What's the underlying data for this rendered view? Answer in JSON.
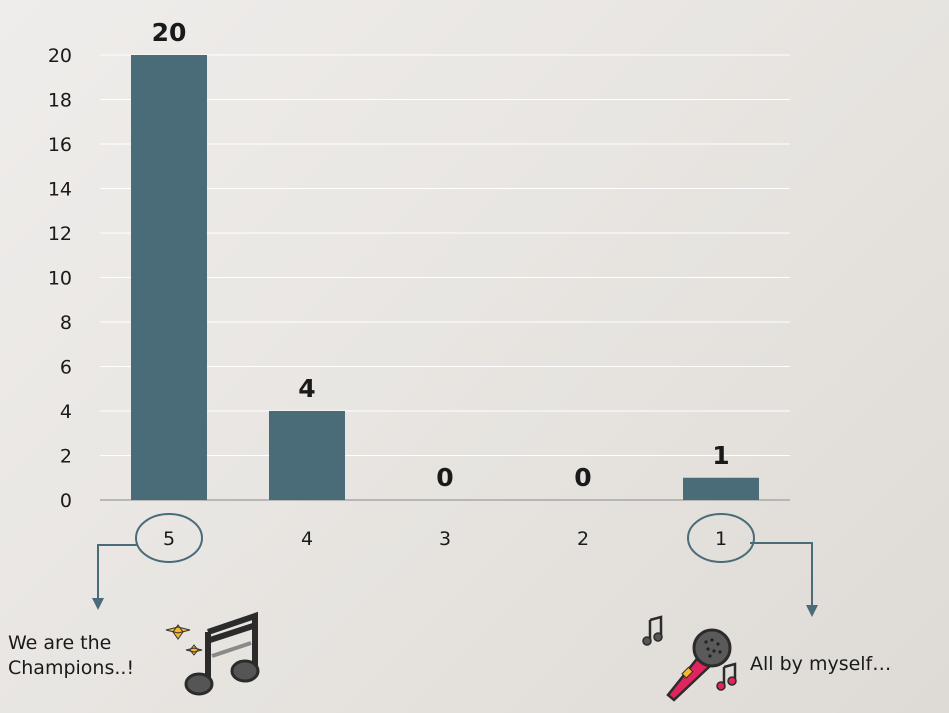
{
  "chart_data": {
    "type": "bar",
    "categories": [
      "5",
      "4",
      "3",
      "2",
      "1"
    ],
    "values": [
      20,
      4,
      0,
      0,
      1
    ],
    "data_labels": [
      "20",
      "4",
      "0",
      "0",
      "1"
    ],
    "title": "",
    "xlabel": "",
    "ylabel": "",
    "ylim": [
      0,
      20
    ],
    "yticks": [
      "0",
      "2",
      "4",
      "6",
      "8",
      "10",
      "12",
      "14",
      "16",
      "18",
      "20"
    ],
    "grid": true,
    "legend": "none",
    "bar_color": "#4a6b78",
    "highlighted_categories": [
      "5",
      "1"
    ]
  },
  "annotations": {
    "left_line1": "We are the",
    "left_line2": "Champions..!",
    "right_text": "All by myself…",
    "left_icon": "music-note-sparkle-icon",
    "right_icon": "karaoke-microphone-icon"
  },
  "colors": {
    "accent": "#4a6b78",
    "mic_pink": "#e0245e",
    "sparkle_gold": "#f5b82e",
    "note_gray": "#555555"
  }
}
